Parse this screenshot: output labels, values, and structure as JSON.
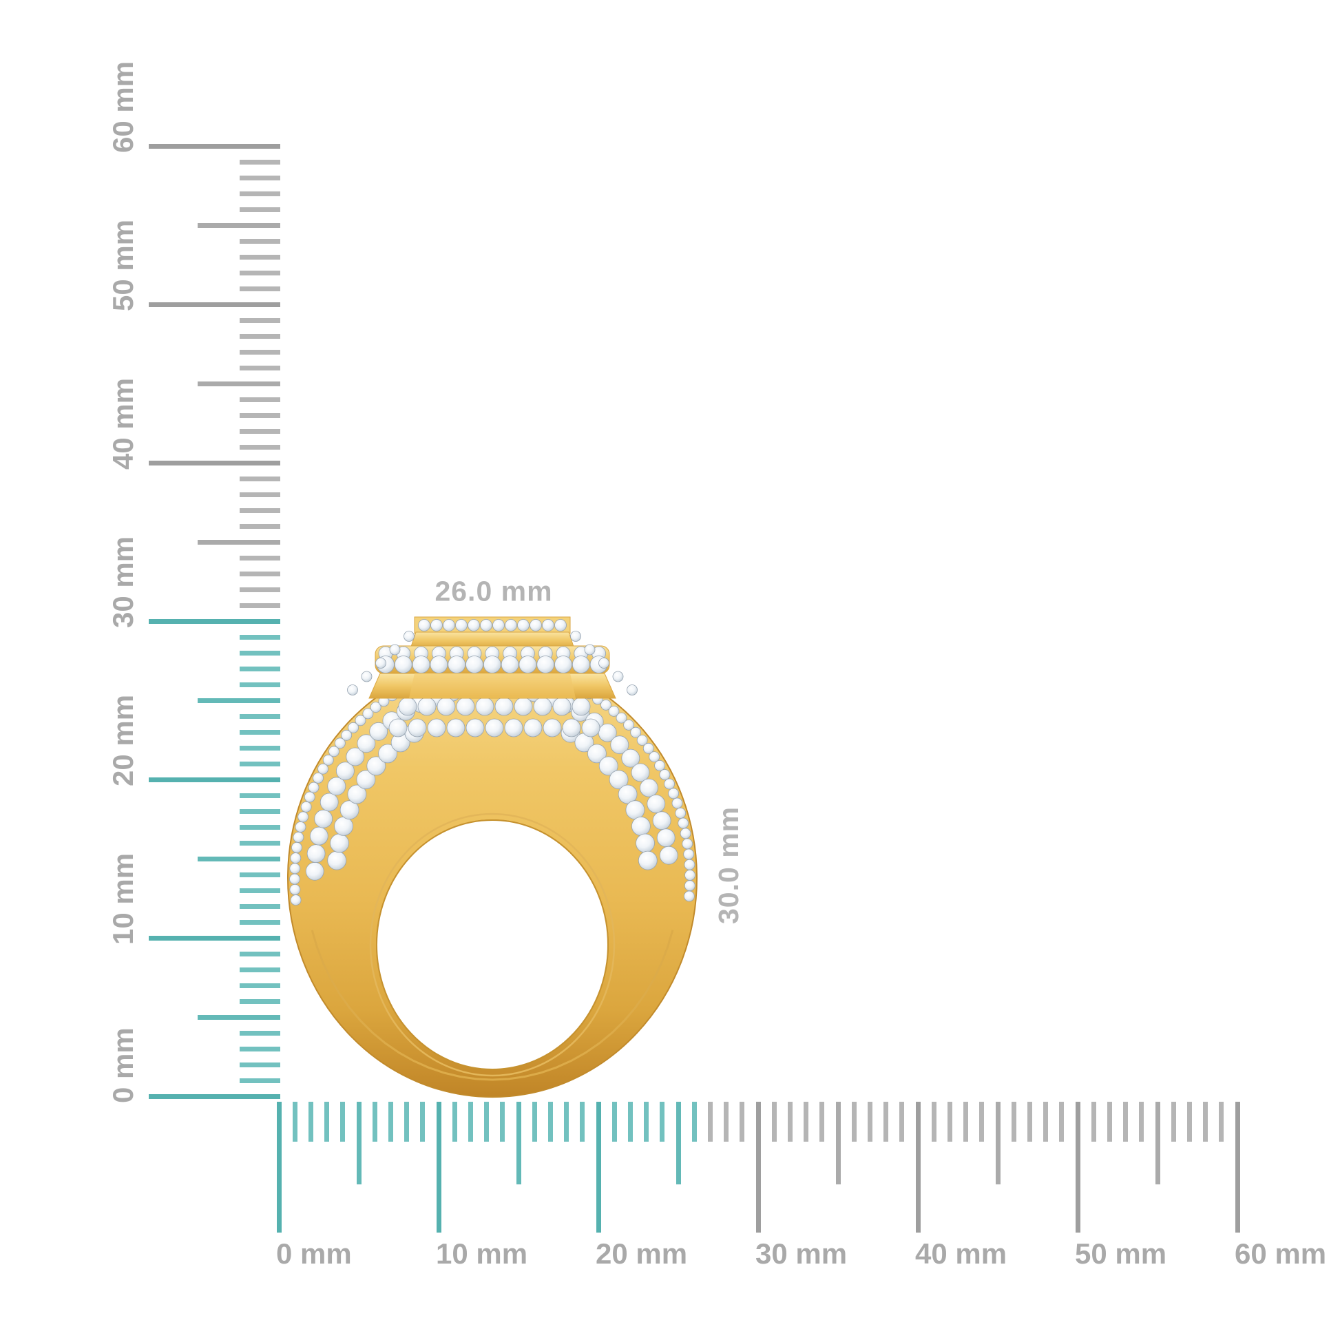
{
  "annotations": {
    "width_label": "26.0 mm",
    "height_label": "30.0 mm",
    "width_mm": 26.0,
    "height_mm": 30.0
  },
  "rulers": {
    "vertical": {
      "unit": "mm",
      "min_mm": 0,
      "max_mm": 60,
      "tick_step_mm": 1,
      "mid_tick_every_mm": 5,
      "label_step_mm": 10,
      "highlight_up_to_mm": 30,
      "labels": [
        "0 mm",
        "10 mm",
        "20 mm",
        "30 mm",
        "40 mm",
        "50 mm",
        "60 mm"
      ]
    },
    "horizontal": {
      "unit": "mm",
      "min_mm": 0,
      "max_mm": 60,
      "tick_step_mm": 1,
      "mid_tick_every_mm": 5,
      "label_step_mm": 10,
      "highlight_up_to_mm": 26,
      "labels": [
        "0 mm",
        "10 mm",
        "20 mm",
        "30 mm",
        "40 mm",
        "50 mm",
        "60 mm"
      ]
    }
  },
  "colors": {
    "background": "#ffffff",
    "tick_teal": "#72c1bf",
    "tick_teal_mid": "#63b9b7",
    "tick_teal_major": "#55b1af",
    "tick_gray": "#b5b5b5",
    "tick_gray_mid": "#aaaaaa",
    "tick_gray_major": "#9e9e9e",
    "ruler_label_gray": "#a9a9a9",
    "dimension_label_gray": "#b4b4b4",
    "gold_highlight": "#fae4a1",
    "gold_light": "#f6d98d",
    "gold": "#f0c766",
    "gold_dark": "#dba63e",
    "gold_deep": "#c08527",
    "gold_edge": "#c18a2b",
    "diamond_white": "#ffffff",
    "diamond_light": "#f0f4f8",
    "diamond_shade": "#aab6c2",
    "diamond_stroke": "#96a3b0"
  }
}
